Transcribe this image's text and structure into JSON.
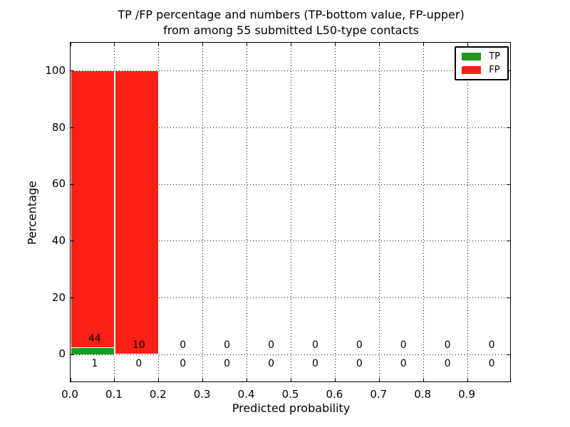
{
  "title": {
    "line1": "TP /FP percentage and numbers (TP-bottom value, FP-upper)",
    "line2": "from among 55 submitted L50-type contacts"
  },
  "axes": {
    "ylabel": "Percentage",
    "xlabel": "Predicted probability",
    "ytick_labels": [
      "0",
      "20",
      "40",
      "60",
      "80",
      "100"
    ],
    "xtick_labels": [
      "0.0",
      "0.1",
      "0.2",
      "0.3",
      "0.4",
      "0.5",
      "0.6",
      "0.7",
      "0.8",
      "0.9"
    ]
  },
  "legend": {
    "items": [
      {
        "label": "TP",
        "color": "#1e9b1e"
      },
      {
        "label": "FP",
        "color": "#fb2016"
      }
    ]
  },
  "chart_data": {
    "type": "bar",
    "subtype": "stacked-percentage-histogram",
    "title": "TP /FP percentage and numbers (TP-bottom value, FP-upper) from among 55 submitted L50-type contacts",
    "xlabel": "Predicted probability",
    "ylabel": "Percentage",
    "xlim": [
      0,
      1
    ],
    "ylim": [
      -10,
      110
    ],
    "grid": true,
    "legend_position": "upper right",
    "total_contacts": 55,
    "contact_type": "L50",
    "series_names": [
      "TP",
      "FP"
    ],
    "colors": {
      "TP": "#1e9b1e",
      "FP": "#fb2016"
    },
    "bin_edges": [
      0.0,
      0.1,
      0.2,
      0.3,
      0.4,
      0.5,
      0.6,
      0.7,
      0.8,
      0.9,
      1.0
    ],
    "bins": [
      {
        "range": "0.0-0.1",
        "tp_count": 1,
        "fp_count": 44,
        "tp_percent": 2.2,
        "fp_percent": 97.8
      },
      {
        "range": "0.1-0.2",
        "tp_count": 0,
        "fp_count": 10,
        "tp_percent": 0,
        "fp_percent": 100
      },
      {
        "range": "0.2-0.3",
        "tp_count": 0,
        "fp_count": 0,
        "tp_percent": 0,
        "fp_percent": 0
      },
      {
        "range": "0.3-0.4",
        "tp_count": 0,
        "fp_count": 0,
        "tp_percent": 0,
        "fp_percent": 0
      },
      {
        "range": "0.4-0.5",
        "tp_count": 0,
        "fp_count": 0,
        "tp_percent": 0,
        "fp_percent": 0
      },
      {
        "range": "0.5-0.6",
        "tp_count": 0,
        "fp_count": 0,
        "tp_percent": 0,
        "fp_percent": 0
      },
      {
        "range": "0.6-0.7",
        "tp_count": 0,
        "fp_count": 0,
        "tp_percent": 0,
        "fp_percent": 0
      },
      {
        "range": "0.7-0.8",
        "tp_count": 0,
        "fp_count": 0,
        "tp_percent": 0,
        "fp_percent": 0
      },
      {
        "range": "0.8-0.9",
        "tp_count": 0,
        "fp_count": 0,
        "tp_percent": 0,
        "fp_percent": 0
      },
      {
        "range": "0.9-1.0",
        "tp_count": 0,
        "fp_count": 0,
        "tp_percent": 0,
        "fp_percent": 0
      }
    ]
  }
}
